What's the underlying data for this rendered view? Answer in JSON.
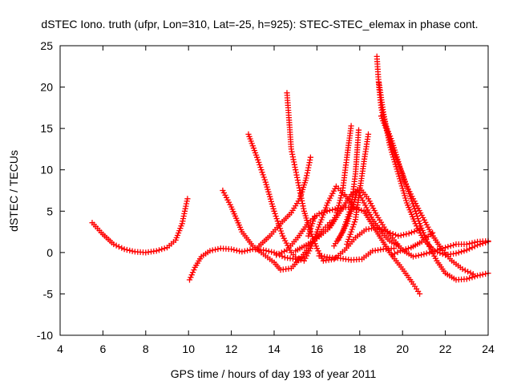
{
  "chart_data": {
    "type": "scatter",
    "title": "dSTEC Iono. truth (ufpr, Lon=310, Lat=-25, h=925): STEC-STEC_elemax in phase cont.",
    "xlabel": "GPS time / hours of day 193 of year 2011",
    "ylabel": "dSTEC  / TECUs",
    "xlim": [
      4,
      24
    ],
    "ylim": [
      -10,
      25
    ],
    "x_ticks": [
      "4",
      "6",
      "8",
      "10",
      "12",
      "14",
      "16",
      "18",
      "20",
      "22",
      "24"
    ],
    "y_ticks": [
      "-10",
      "-5",
      "0",
      "5",
      "10",
      "15",
      "20",
      "25"
    ],
    "grid": false,
    "legend": "none",
    "marker": "plus",
    "series_color": "#ff0000",
    "series": [
      {
        "points": [
          [
            5.5,
            3.6
          ],
          [
            6.0,
            2.2
          ],
          [
            6.5,
            1.0
          ],
          [
            7.0,
            0.4
          ],
          [
            7.5,
            0.1
          ],
          [
            8.0,
            0.0
          ],
          [
            8.5,
            0.2
          ],
          [
            9.0,
            0.6
          ],
          [
            9.4,
            1.5
          ],
          [
            9.7,
            3.5
          ],
          [
            9.95,
            6.5
          ]
        ]
      },
      {
        "points": [
          [
            10.05,
            -3.3
          ],
          [
            10.3,
            -1.8
          ],
          [
            10.6,
            -0.5
          ],
          [
            11.0,
            0.2
          ],
          [
            11.5,
            0.5
          ],
          [
            12.0,
            0.4
          ],
          [
            12.5,
            0.1
          ],
          [
            13.0,
            0.4
          ],
          [
            13.5,
            0.3
          ],
          [
            14.0,
            0.0
          ],
          [
            14.5,
            -0.6
          ],
          [
            15.0,
            -0.8
          ],
          [
            15.3,
            -0.6
          ]
        ]
      },
      {
        "points": [
          [
            11.6,
            7.5
          ],
          [
            12.0,
            5.5
          ],
          [
            12.5,
            2.5
          ],
          [
            13.0,
            0.8
          ],
          [
            13.5,
            -0.2
          ],
          [
            14.0,
            -1.2
          ],
          [
            14.3,
            -2.1
          ],
          [
            14.8,
            -1.9
          ],
          [
            15.3,
            -0.5
          ],
          [
            15.8,
            1.3
          ],
          [
            16.3,
            2.8
          ],
          [
            16.6,
            3.6
          ]
        ]
      },
      {
        "points": [
          [
            12.8,
            14.3
          ],
          [
            13.2,
            11.5
          ],
          [
            13.6,
            8.5
          ],
          [
            14.0,
            5.0
          ],
          [
            14.4,
            2.0
          ],
          [
            14.8,
            0.0
          ],
          [
            15.1,
            -0.8
          ],
          [
            15.4,
            -1.0
          ],
          [
            15.7,
            0.5
          ],
          [
            16.0,
            2.5
          ],
          [
            16.5,
            6.0
          ],
          [
            16.9,
            8.0
          ],
          [
            17.3,
            7.0
          ],
          [
            17.7,
            5.5
          ]
        ]
      },
      {
        "points": [
          [
            14.6,
            19.3
          ],
          [
            14.7,
            16.0
          ],
          [
            14.8,
            12.5
          ],
          [
            15.0,
            10.0
          ],
          [
            15.2,
            7.5
          ],
          [
            15.4,
            5.0
          ],
          [
            15.7,
            2.5
          ],
          [
            16.0,
            0.5
          ],
          [
            16.3,
            -1.0
          ],
          [
            16.8,
            -0.8
          ],
          [
            17.3,
            0.3
          ],
          [
            17.8,
            1.8
          ],
          [
            18.3,
            2.8
          ],
          [
            18.8,
            3.0
          ],
          [
            19.3,
            2.5
          ],
          [
            19.8,
            2.0
          ],
          [
            20.3,
            2.3
          ],
          [
            20.8,
            2.8
          ]
        ]
      },
      {
        "points": [
          [
            13.3,
            0.8
          ],
          [
            13.8,
            2.0
          ],
          [
            14.3,
            3.5
          ],
          [
            14.8,
            4.8
          ],
          [
            15.2,
            6.5
          ],
          [
            15.5,
            9.0
          ],
          [
            15.7,
            11.5
          ]
        ]
      },
      {
        "points": [
          [
            15.6,
            2.0
          ],
          [
            15.9,
            4.4
          ]
        ]
      },
      {
        "points": [
          [
            14.1,
            -0.3
          ],
          [
            14.6,
            0.3
          ],
          [
            15.1,
            1.8
          ],
          [
            15.6,
            3.6
          ],
          [
            16.1,
            4.7
          ],
          [
            16.6,
            5.1
          ],
          [
            17.1,
            5.4
          ],
          [
            17.6,
            5.5
          ],
          [
            18.2,
            5.0
          ],
          [
            18.8,
            2.5
          ],
          [
            19.4,
            0.0
          ],
          [
            20.0,
            -2.0
          ],
          [
            20.5,
            -3.8
          ],
          [
            20.8,
            -5.0
          ]
        ]
      },
      {
        "points": [
          [
            15.0,
            0.2
          ],
          [
            15.5,
            0.9
          ],
          [
            16.0,
            1.7
          ],
          [
            16.5,
            2.8
          ],
          [
            16.9,
            4.5
          ],
          [
            17.2,
            7.5
          ],
          [
            17.4,
            11.5
          ],
          [
            17.6,
            15.3
          ]
        ]
      },
      {
        "points": [
          [
            16.1,
            -0.4
          ],
          [
            16.6,
            -0.6
          ],
          [
            17.1,
            -0.7
          ],
          [
            17.6,
            -0.9
          ],
          [
            18.1,
            -0.8
          ],
          [
            18.6,
            0.2
          ],
          [
            19.1,
            0.4
          ],
          [
            19.6,
            0.5
          ]
        ]
      },
      {
        "points": [
          [
            16.8,
            0.8
          ],
          [
            17.2,
            2.5
          ],
          [
            17.6,
            5.5
          ],
          [
            17.8,
            9.5
          ],
          [
            17.9,
            13.0
          ],
          [
            17.95,
            14.8
          ]
        ]
      },
      {
        "points": [
          [
            17.4,
            1.0
          ],
          [
            17.8,
            4.0
          ],
          [
            18.0,
            7.5
          ],
          [
            18.2,
            11.0
          ],
          [
            18.4,
            14.3
          ]
        ]
      },
      {
        "points": [
          [
            16.6,
            3.0
          ],
          [
            17.1,
            5.0
          ],
          [
            17.6,
            7.0
          ],
          [
            18.0,
            7.8
          ],
          [
            18.4,
            6.5
          ],
          [
            18.8,
            4.5
          ],
          [
            19.2,
            2.8
          ],
          [
            19.6,
            1.5
          ],
          [
            20.0,
            0.3
          ],
          [
            20.5,
            -0.5
          ],
          [
            21.0,
            -0.2
          ],
          [
            21.5,
            0.2
          ],
          [
            22.0,
            0.6
          ],
          [
            22.5,
            1.0
          ],
          [
            23.0,
            1.0
          ],
          [
            23.5,
            1.3
          ],
          [
            24.0,
            1.4
          ]
        ]
      },
      {
        "points": [
          [
            18.8,
            23.7
          ],
          [
            18.9,
            20.0
          ],
          [
            19.0,
            17.5
          ],
          [
            19.2,
            15.5
          ],
          [
            19.5,
            13.5
          ],
          [
            19.8,
            11.0
          ],
          [
            20.1,
            8.5
          ],
          [
            20.5,
            6.5
          ],
          [
            20.9,
            4.5
          ],
          [
            21.3,
            2.5
          ],
          [
            21.8,
            0.5
          ],
          [
            22.3,
            -1.0
          ],
          [
            22.8,
            -2.0
          ],
          [
            23.3,
            -2.6
          ]
        ]
      },
      {
        "points": [
          [
            19.0,
            16.5
          ],
          [
            19.3,
            14.5
          ],
          [
            19.6,
            12.0
          ],
          [
            20.0,
            9.5
          ],
          [
            20.4,
            6.5
          ],
          [
            20.8,
            3.5
          ],
          [
            21.2,
            1.0
          ],
          [
            21.6,
            -1.0
          ],
          [
            22.0,
            -2.5
          ],
          [
            22.5,
            -3.3
          ],
          [
            23.0,
            -3.2
          ],
          [
            23.5,
            -2.8
          ],
          [
            24.0,
            -2.5
          ]
        ]
      },
      {
        "points": [
          [
            18.9,
            20.5
          ],
          [
            19.1,
            17.0
          ],
          [
            19.4,
            13.0
          ],
          [
            19.8,
            9.5
          ],
          [
            20.2,
            6.0
          ],
          [
            20.6,
            3.5
          ],
          [
            21.0,
            1.5
          ],
          [
            21.5,
            0.2
          ],
          [
            22.0,
            -0.3
          ],
          [
            22.5,
            -0.1
          ],
          [
            23.0,
            0.3
          ],
          [
            23.5,
            0.9
          ],
          [
            24.0,
            1.3
          ]
        ]
      },
      {
        "points": [
          [
            19.5,
            -0.3
          ],
          [
            19.9,
            0.2
          ],
          [
            20.4,
            0.6
          ],
          [
            20.9,
            1.3
          ],
          [
            21.4,
            2.4
          ]
        ]
      },
      {
        "points": [
          [
            17.0,
            1.5
          ],
          [
            17.4,
            3.5
          ],
          [
            17.6,
            5.0
          ],
          [
            17.9,
            7.5
          ],
          [
            18.2,
            6.0
          ],
          [
            18.6,
            4.0
          ],
          [
            19.0,
            2.5
          ],
          [
            19.4,
            1.4
          ],
          [
            19.8,
            0.8
          ]
        ]
      }
    ]
  }
}
